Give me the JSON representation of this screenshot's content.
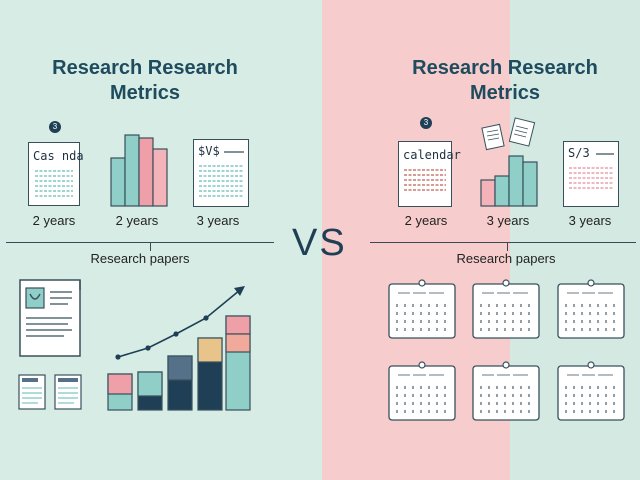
{
  "left": {
    "title": "Research Research Metrics",
    "badge": "3",
    "card_text": "Cas nda",
    "sheet_text": "$V$",
    "durations": [
      "2 years",
      "2 years",
      "3 years"
    ],
    "section_label": "Research papers"
  },
  "center": {
    "vs": "VS"
  },
  "right": {
    "title": "Research Research Metrics",
    "badge": "3",
    "card_text": "calendar",
    "sheet_text": "S/3",
    "durations": [
      "2 years",
      "3 years",
      "3 years"
    ],
    "section_label": "Research papers"
  },
  "colors": {
    "teal": "#8fcfc7",
    "pink": "#ee9fa8",
    "navy": "#1e3f55",
    "tan": "#e9c48a",
    "slate": "#55718a"
  }
}
